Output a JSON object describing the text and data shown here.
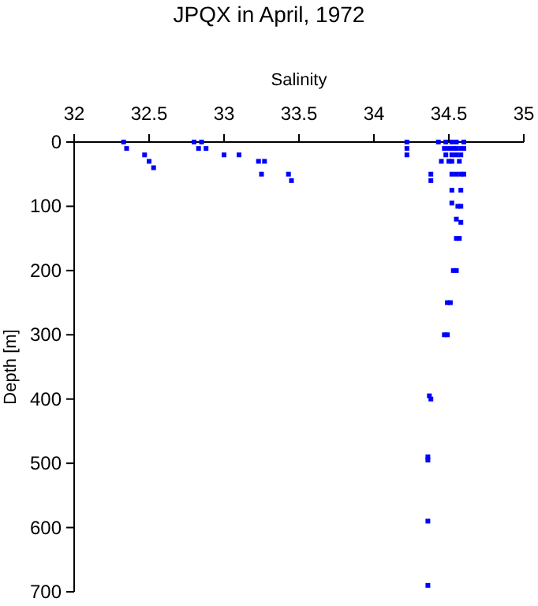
{
  "chart_data": {
    "type": "scatter",
    "title": "JPQX in April, 1972",
    "xlabel": "Salinity",
    "ylabel": "Depth [m]",
    "marker": "square",
    "grid": false,
    "xlim": [
      32,
      35
    ],
    "xticks": [
      32,
      32.5,
      33,
      33.5,
      34,
      34.5,
      35
    ],
    "ylim": [
      700,
      0
    ],
    "yticks": [
      0,
      100,
      200,
      300,
      400,
      500,
      600,
      700
    ],
    "series": [
      {
        "color": "#0000ff",
        "x": [
          32.33,
          32.35,
          32.47,
          32.5,
          32.53,
          32.8,
          32.83,
          32.85,
          32.88,
          33.0,
          33.1,
          33.23,
          33.27,
          33.25,
          33.43,
          33.45,
          34.22,
          34.22,
          34.22,
          34.38,
          34.38,
          34.43,
          34.48,
          34.52,
          34.55,
          34.6,
          34.47,
          34.5,
          34.53,
          34.55,
          34.58,
          34.6,
          34.48,
          34.52,
          34.55,
          34.58,
          34.45,
          34.5,
          34.52,
          34.57,
          34.52,
          34.55,
          34.58,
          34.6,
          34.52,
          34.58,
          34.52,
          34.56,
          34.58,
          34.55,
          34.58,
          34.55,
          34.57,
          34.53,
          34.55,
          34.49,
          34.51,
          34.47,
          34.49,
          34.37,
          34.38,
          34.36,
          34.36,
          34.36,
          34.36
        ],
        "values": [
          0,
          10,
          20,
          30,
          40,
          0,
          10,
          0,
          10,
          20,
          20,
          30,
          30,
          50,
          50,
          60,
          0,
          10,
          20,
          50,
          60,
          0,
          0,
          0,
          0,
          0,
          10,
          10,
          10,
          10,
          10,
          10,
          20,
          20,
          20,
          20,
          30,
          30,
          30,
          30,
          50,
          50,
          50,
          50,
          75,
          75,
          95,
          100,
          100,
          120,
          125,
          150,
          150,
          200,
          200,
          250,
          250,
          300,
          300,
          395,
          400,
          490,
          495,
          590,
          690
        ]
      }
    ]
  }
}
